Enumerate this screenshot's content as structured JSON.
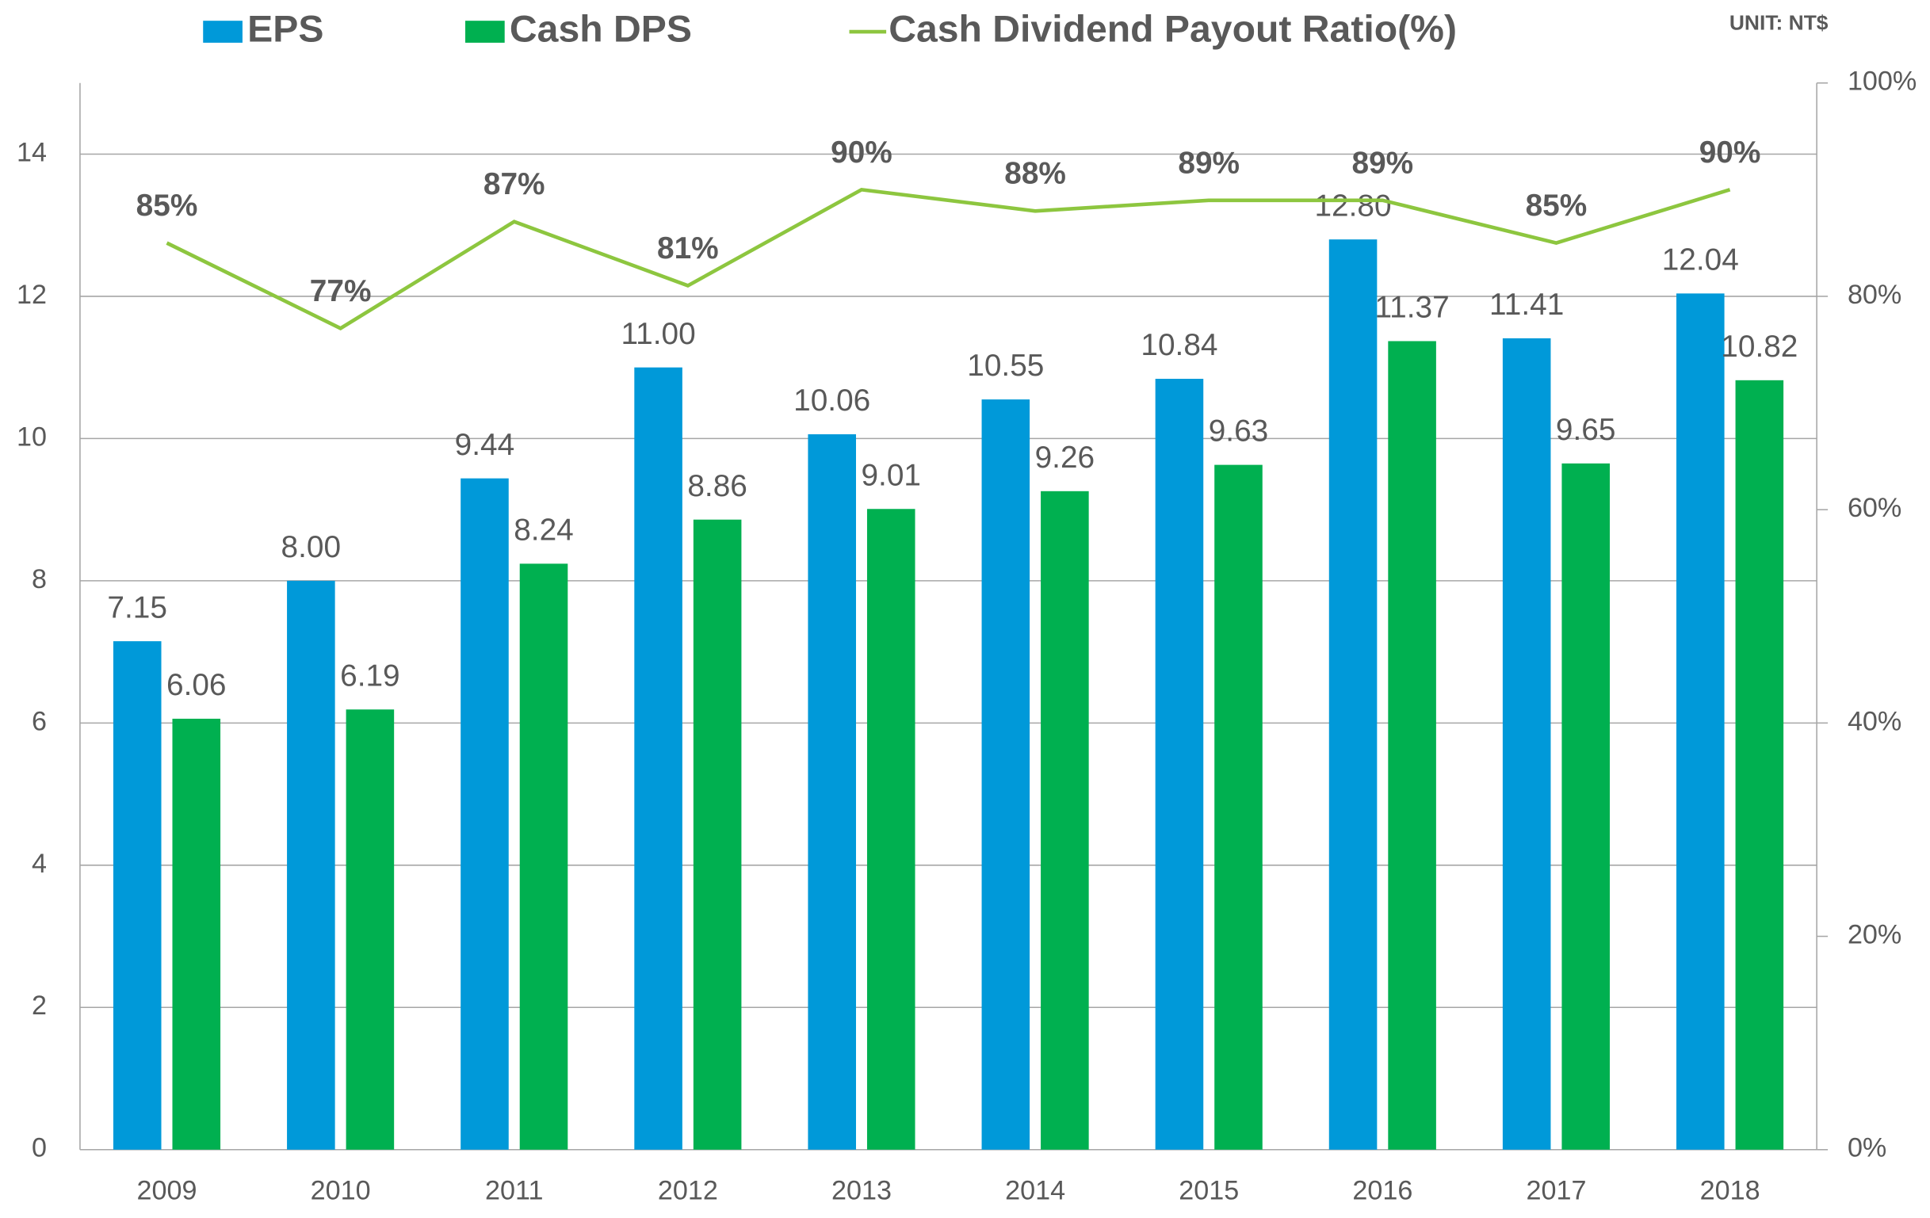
{
  "chart_data": {
    "type": "bar",
    "legend": "top",
    "note": "UNIT: NT$",
    "categories": [
      "2009",
      "2010",
      "2011",
      "2012",
      "2013",
      "2014",
      "2015",
      "2016",
      "2017",
      "2018"
    ],
    "series": [
      {
        "name": "EPS",
        "type": "bar",
        "color": "#0099d9",
        "values": [
          7.15,
          8.0,
          9.44,
          11.0,
          10.06,
          10.55,
          10.84,
          12.8,
          11.41,
          12.04
        ],
        "value_labels": [
          "7.15",
          "8.00",
          "9.44",
          "11.00",
          "10.06",
          "10.55",
          "10.84",
          "12.80",
          "11.41",
          "12.04"
        ]
      },
      {
        "name": "Cash DPS",
        "type": "bar",
        "color": "#00b050",
        "values": [
          6.06,
          6.19,
          8.24,
          8.86,
          9.01,
          9.26,
          9.63,
          11.37,
          9.65,
          10.82
        ],
        "value_labels": [
          "6.06",
          "6.19",
          "8.24",
          "8.86",
          "9.01",
          "9.26",
          "9.63",
          "11.37",
          "9.65",
          "10.82"
        ]
      },
      {
        "name": "Cash Dividend Payout Ratio(%)",
        "type": "line",
        "axis": "y2",
        "color": "#8dc63f",
        "values": [
          85,
          77,
          87,
          81,
          90,
          88,
          89,
          89,
          85,
          90
        ],
        "value_labels": [
          "85%",
          "77%",
          "87%",
          "81%",
          "90%",
          "88%",
          "89%",
          "89%",
          "85%",
          "90%"
        ]
      }
    ],
    "ylim": [
      0,
      15
    ],
    "yticks": [
      0,
      2,
      4,
      6,
      8,
      10,
      12,
      14
    ],
    "y2lim": [
      0,
      100
    ],
    "y2ticks": [
      {
        "value": 0,
        "label": "0%"
      },
      {
        "value": 20,
        "label": "20%"
      },
      {
        "value": 40,
        "label": "40%"
      },
      {
        "value": 60,
        "label": "60%"
      },
      {
        "value": 80,
        "label": "80%"
      },
      {
        "value": 100,
        "label": "100%"
      }
    ],
    "grid": true
  }
}
